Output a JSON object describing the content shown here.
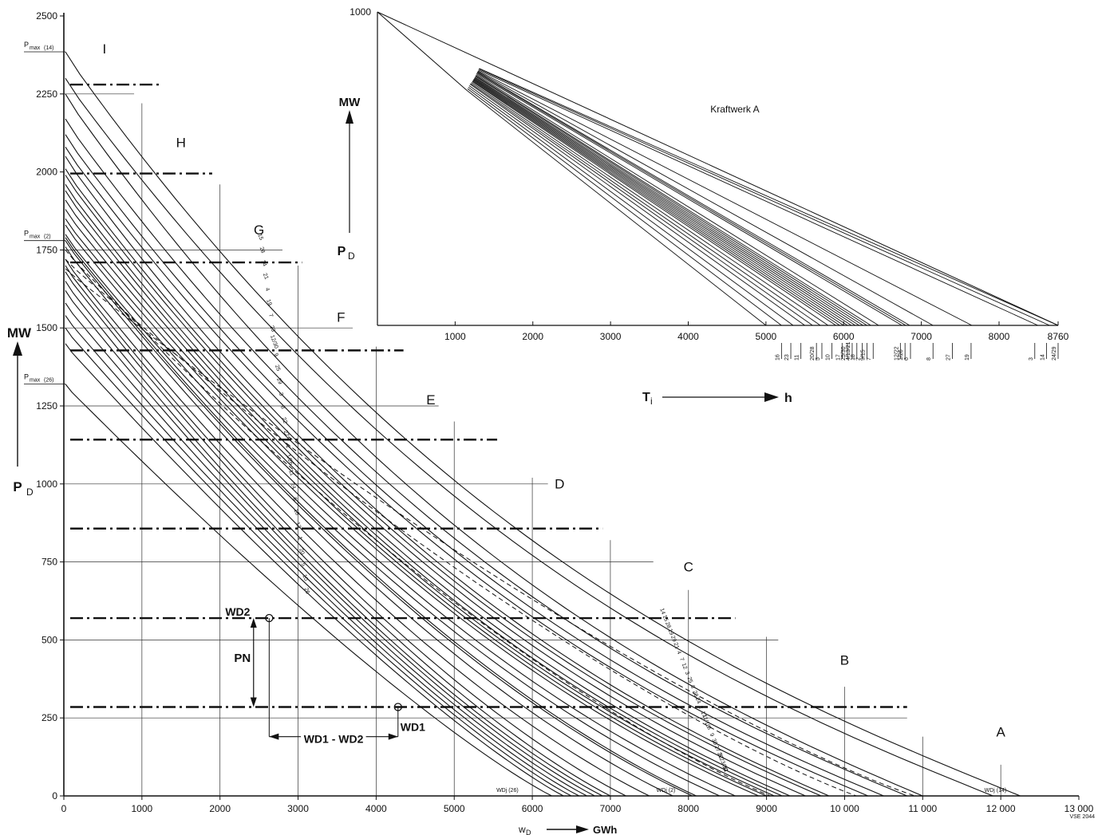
{
  "chart_data": [
    {
      "type": "line",
      "title": "",
      "ylabel_unit": "MW",
      "ylabel_symbol": "PD",
      "xlabel_symbol": "wD",
      "xlabel_unit": "GWh",
      "xlim": [
        0,
        13000
      ],
      "ylim": [
        0,
        2500
      ],
      "x_ticks": [
        "0",
        "1000",
        "2000",
        "3000",
        "4000",
        "5000",
        "6000",
        "7000",
        "8000",
        "9000",
        "10 000",
        "11 000",
        "12 000",
        "13 000"
      ],
      "y_ticks": [
        "0",
        "250",
        "500",
        "750",
        "1000",
        "1250",
        "1500",
        "1750",
        "2000",
        "2250",
        "2500"
      ],
      "zones": [
        "A",
        "B",
        "C",
        "D",
        "E",
        "F",
        "G",
        "H",
        "I"
      ],
      "dashdot_levels": [
        285,
        570,
        857,
        1142,
        1428,
        1710,
        1995,
        2280
      ],
      "pmax_labels": [
        {
          "text": "PD max (14)",
          "y": 2385
        },
        {
          "text": "PD max (2)",
          "y": 1780
        },
        {
          "text": "PD max (26)",
          "y": 1320
        }
      ],
      "endpoint_labels": [
        {
          "text": "WDj (26)",
          "x": 6000
        },
        {
          "text": "WDj (2)",
          "x": 8050
        },
        {
          "text": "WDj (14)",
          "x": 12250
        }
      ],
      "annotations": {
        "wd2": "WD2",
        "wd1": "WD1",
        "pn": "PN",
        "diff": "WD1 - WD2",
        "code": "VSE 2044"
      },
      "curve_labels_top": [
        "15",
        "28",
        "14",
        "21",
        "4",
        "19",
        "7",
        "23",
        "12/30",
        "9",
        "25",
        "29",
        "3",
        "8",
        "22",
        "27",
        "2",
        "1/26",
        "11",
        "24",
        "6",
        "18",
        "13",
        "1",
        "20",
        "5",
        "10",
        "26"
      ],
      "curve_labels_bottom": [
        "14",
        "15",
        "28",
        "19",
        "29",
        "21",
        "4",
        "7",
        "12",
        "3",
        "25",
        "8",
        "23",
        "24",
        "2",
        "17",
        "11/16",
        "6",
        "9",
        "30",
        "27",
        "22",
        "9/23/30",
        "11"
      ],
      "series": [
        {
          "name": "14",
          "y0": 2385,
          "xend": 12250,
          "k": 2.7
        },
        {
          "name": "15",
          "y0": 2300,
          "xend": 11900,
          "k": 2.6
        },
        {
          "name": "28",
          "y0": 2250,
          "xend": 11000,
          "k": 2.55
        },
        {
          "name": "21",
          "y0": 2170,
          "xend": 10800,
          "k": 2.5
        },
        {
          "name": "4",
          "y0": 2120,
          "xend": 10500,
          "k": 2.45
        },
        {
          "name": "19",
          "y0": 2080,
          "xend": 10300,
          "k": 2.4
        },
        {
          "name": "7",
          "y0": 2050,
          "xend": 9800,
          "k": 2.35
        },
        {
          "name": "23",
          "y0": 2010,
          "xend": 9700,
          "k": 2.3
        },
        {
          "name": "12",
          "y0": 1990,
          "xend": 9500,
          "k": 2.25
        },
        {
          "name": "30",
          "y0": 1960,
          "xend": 9300,
          "k": 2.2
        },
        {
          "name": "9",
          "y0": 1940,
          "xend": 9200,
          "k": 2.2
        },
        {
          "name": "25",
          "y0": 1910,
          "xend": 9100,
          "k": 2.15
        },
        {
          "name": "29",
          "y0": 1880,
          "xend": 9000,
          "k": 2.1
        },
        {
          "name": "3",
          "y0": 1850,
          "xend": 8900,
          "k": 2.05
        },
        {
          "name": "8",
          "y0": 1830,
          "xend": 8600,
          "k": 2.0
        },
        {
          "name": "22",
          "y0": 1800,
          "xend": 8400,
          "k": 1.95
        },
        {
          "name": "27",
          "y0": 1790,
          "xend": 8100,
          "k": 1.9
        },
        {
          "name": "2",
          "y0": 1780,
          "xend": 8050,
          "k": 1.9
        },
        {
          "name": "1",
          "y0": 1760,
          "xend": 7800,
          "k": 1.85
        },
        {
          "name": "16",
          "y0": 1720,
          "xend": 7500,
          "k": 1.8
        },
        {
          "name": "11",
          "y0": 1700,
          "xend": 7200,
          "k": 1.75
        },
        {
          "name": "24",
          "y0": 1680,
          "xend": 7000,
          "k": 1.7
        },
        {
          "name": "6",
          "y0": 1650,
          "xend": 6900,
          "k": 1.7
        },
        {
          "name": "18",
          "y0": 1620,
          "xend": 6800,
          "k": 1.65
        },
        {
          "name": "13",
          "y0": 1580,
          "xend": 6700,
          "k": 1.6
        },
        {
          "name": "20",
          "y0": 1540,
          "xend": 6600,
          "k": 1.55
        },
        {
          "name": "5",
          "y0": 1500,
          "xend": 6500,
          "k": 1.5
        },
        {
          "name": "10",
          "y0": 1450,
          "xend": 6400,
          "k": 1.45
        },
        {
          "name": "26",
          "y0": 1320,
          "xend": 6250,
          "k": 1.4
        }
      ],
      "dashed_series": [
        {
          "name": "17",
          "y0": 1750,
          "xend": 9050,
          "k": 1.7
        },
        {
          "name": "9/23/30",
          "y0": 1720,
          "xend": 10150,
          "k": 1.6
        },
        {
          "name": "24b",
          "y0": 1690,
          "xend": 10900,
          "k": 1.55
        }
      ]
    },
    {
      "type": "line",
      "title": "Kraftwerk A",
      "ylabel_unit": "MW",
      "ylabel_symbol": "PD",
      "xlabel_symbol": "Ti",
      "xlabel_unit": "h",
      "xlim": [
        0,
        8760
      ],
      "ylim": [
        0,
        1000
      ],
      "y_top_label": "1000",
      "x_ticks": [
        "1000",
        "2000",
        "3000",
        "4000",
        "5000",
        "6000",
        "7000",
        "8000",
        "8760"
      ],
      "fan_end_x": [
        5000,
        5200,
        5350,
        5500,
        5600,
        5700,
        5800,
        5900,
        5950,
        6000,
        6050,
        6100,
        6150,
        6200,
        6250,
        6300,
        6350,
        6450,
        6750,
        6800,
        6850,
        7150,
        7650,
        8500,
        8650,
        8760
      ],
      "fan_start_x": [
        1150,
        1160,
        1170,
        1180,
        1190,
        1200,
        1210,
        1220,
        1225,
        1230,
        1235,
        1240,
        1245,
        1250,
        1255,
        1260,
        1265,
        1270,
        1275,
        1280,
        1285,
        1290,
        1295,
        1300,
        1305,
        1310
      ],
      "fan_start_y": [
        750,
        755,
        760,
        765,
        770,
        772,
        775,
        778,
        780,
        782,
        784,
        786,
        788,
        790,
        792,
        795,
        797,
        800,
        803,
        806,
        808,
        810,
        812,
        815,
        818,
        820
      ],
      "bottom_marks": [
        {
          "x": 5200,
          "label": "16"
        },
        {
          "x": 5320,
          "label": "23"
        },
        {
          "x": 5450,
          "label": "11"
        },
        {
          "x": 5650,
          "label": "20/28"
        },
        {
          "x": 5720,
          "label": "5"
        },
        {
          "x": 5850,
          "label": "10"
        },
        {
          "x": 5980,
          "label": "17"
        },
        {
          "x": 6050,
          "label": "25/30"
        },
        {
          "x": 6110,
          "label": "4/13/21"
        },
        {
          "x": 6170,
          "label": "18"
        },
        {
          "x": 6240,
          "label": "2"
        },
        {
          "x": 6300,
          "label": "9/15"
        },
        {
          "x": 6380,
          "label": "7"
        },
        {
          "x": 6730,
          "label": "12/22"
        },
        {
          "x": 6790,
          "label": "1/26"
        },
        {
          "x": 6860,
          "label": "6"
        },
        {
          "x": 7150,
          "label": "8"
        },
        {
          "x": 7400,
          "label": "27"
        },
        {
          "x": 7640,
          "label": "19"
        },
        {
          "x": 8460,
          "label": "3"
        },
        {
          "x": 8610,
          "label": "14"
        },
        {
          "x": 8760,
          "label": "24/29"
        }
      ]
    }
  ]
}
